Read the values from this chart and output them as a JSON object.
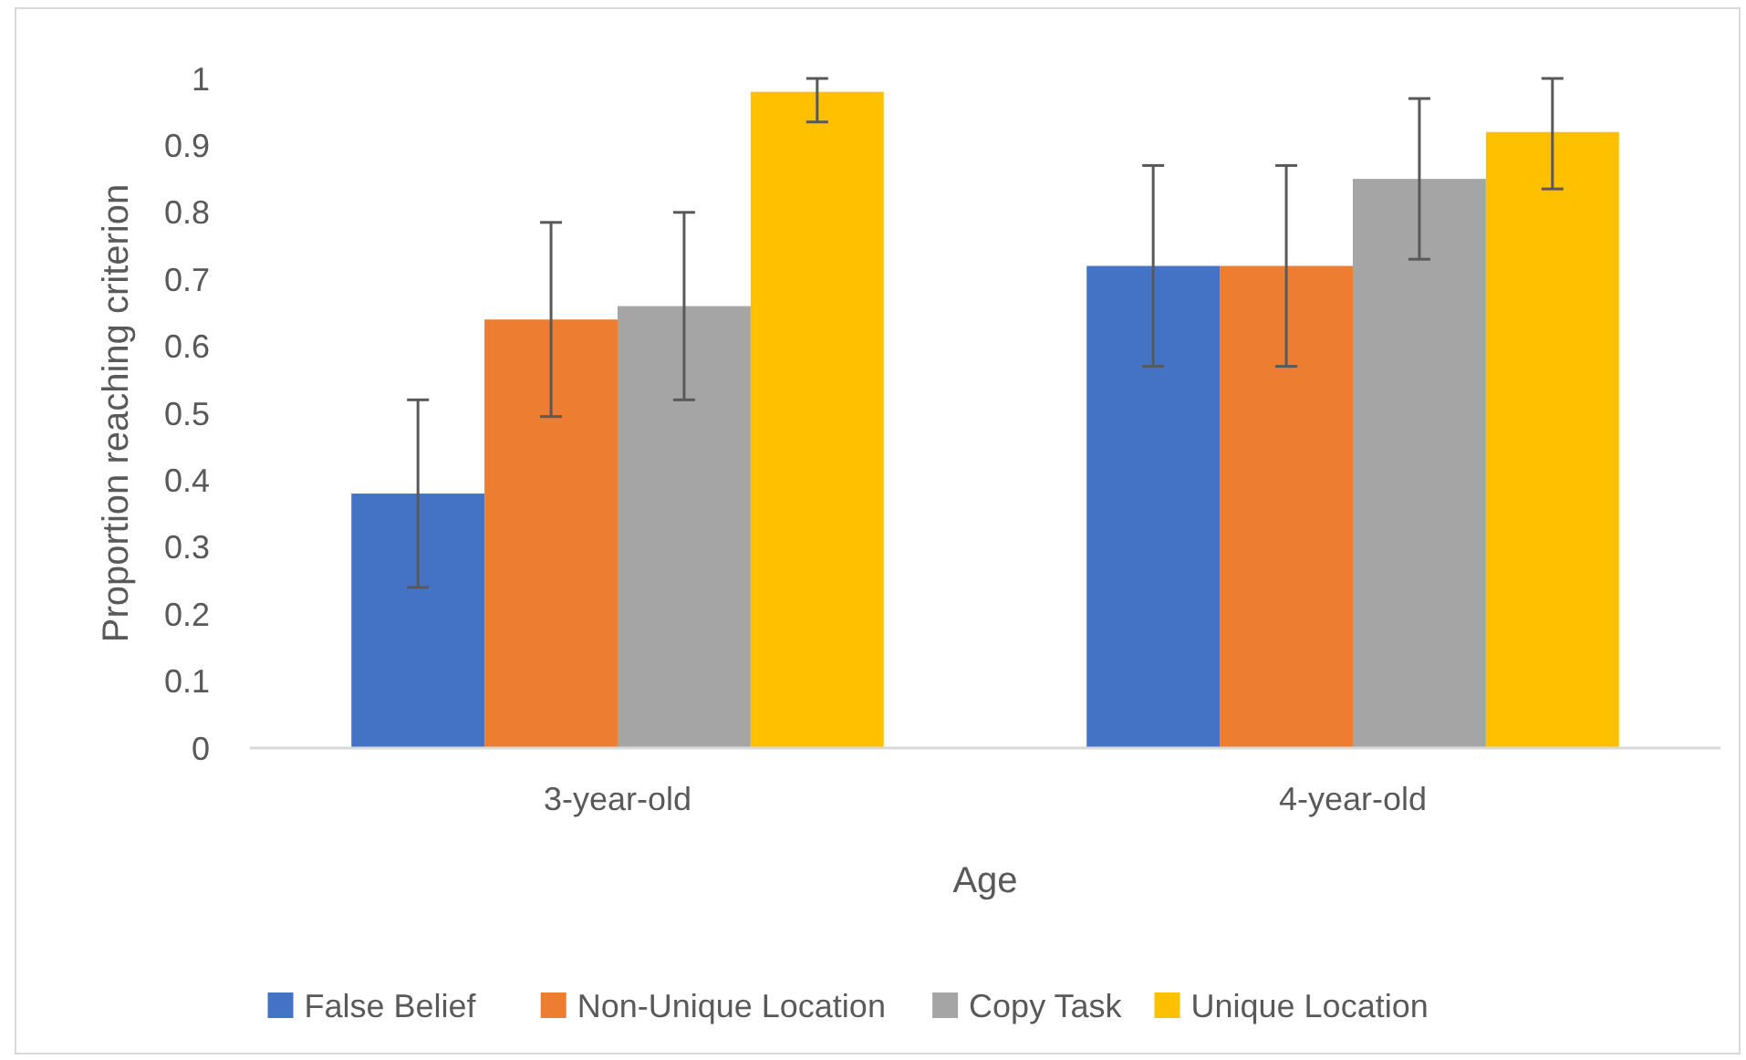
{
  "chart_data": {
    "type": "bar",
    "xlabel": "Age",
    "ylabel": "Proportion reaching criterion",
    "categories": [
      "3-year-old",
      "4-year-old"
    ],
    "series": [
      {
        "name": "False Belief",
        "color": "#4472c4",
        "values": [
          0.38,
          0.72
        ],
        "errors": [
          [
            0.24,
            0.52
          ],
          [
            0.57,
            0.87
          ]
        ]
      },
      {
        "name": "Non-Unique Location",
        "color": "#ed7d31",
        "values": [
          0.64,
          0.72
        ],
        "errors": [
          [
            0.495,
            0.785
          ],
          [
            0.57,
            0.87
          ]
        ]
      },
      {
        "name": "Copy Task",
        "color": "#a5a5a5",
        "values": [
          0.66,
          0.85
        ],
        "errors": [
          [
            0.52,
            0.8
          ],
          [
            0.73,
            0.97
          ]
        ]
      },
      {
        "name": "Unique Location",
        "color": "#ffc000",
        "values": [
          0.98,
          0.92
        ],
        "errors": [
          [
            0.935,
            1.0
          ],
          [
            0.835,
            1.0
          ]
        ]
      }
    ],
    "ylim": [
      0,
      1
    ],
    "yticks": [
      0,
      {
        "value": 0.1,
        "label": "0.1"
      },
      {
        "value": 0.2,
        "label": "0.2"
      },
      {
        "value": 0.3,
        "label": "0.3"
      },
      {
        "value": 0.4,
        "label": "0.4"
      },
      {
        "value": 0.5,
        "label": "0.5"
      },
      {
        "value": 0.6,
        "label": "0.6"
      },
      {
        "value": 0.7,
        "label": "0.7"
      },
      {
        "value": 0.8,
        "label": "0.8"
      },
      {
        "value": 0.9,
        "label": "0.9"
      },
      1
    ],
    "grid": false,
    "legend": "bottom"
  }
}
